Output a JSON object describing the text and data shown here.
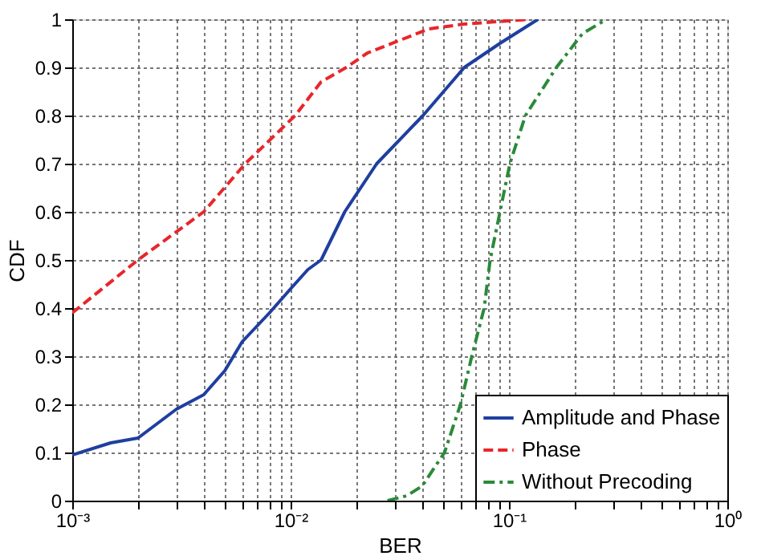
{
  "chart_data": {
    "type": "line",
    "xlabel": "BER",
    "ylabel": "CDF",
    "log": "x",
    "grid": true,
    "legend": "bottom right",
    "xlim": [
      0.001,
      1
    ],
    "ylim": [
      0,
      1
    ],
    "xticks": [
      {
        "value": 0.001,
        "label": "10⁻³"
      },
      {
        "value": 0.002,
        "label": null
      },
      {
        "value": 0.003,
        "label": null
      },
      {
        "value": 0.004,
        "label": null
      },
      {
        "value": 0.005,
        "label": null
      },
      {
        "value": 0.006,
        "label": null
      },
      {
        "value": 0.007,
        "label": null
      },
      {
        "value": 0.008,
        "label": null
      },
      {
        "value": 0.009,
        "label": null
      },
      {
        "value": 0.01,
        "label": "10⁻²"
      },
      {
        "value": 0.02,
        "label": null
      },
      {
        "value": 0.03,
        "label": null
      },
      {
        "value": 0.04,
        "label": null
      },
      {
        "value": 0.05,
        "label": null
      },
      {
        "value": 0.06,
        "label": null
      },
      {
        "value": 0.07,
        "label": null
      },
      {
        "value": 0.08,
        "label": null
      },
      {
        "value": 0.09,
        "label": null
      },
      {
        "value": 0.1,
        "label": "10⁻¹"
      },
      {
        "value": 0.2,
        "label": null
      },
      {
        "value": 0.3,
        "label": null
      },
      {
        "value": 0.4,
        "label": null
      },
      {
        "value": 0.5,
        "label": null
      },
      {
        "value": 0.6,
        "label": null
      },
      {
        "value": 0.7,
        "label": null
      },
      {
        "value": 0.8,
        "label": null
      },
      {
        "value": 0.9,
        "label": null
      },
      {
        "value": 1,
        "label": "10⁰"
      }
    ],
    "yticks": [
      0,
      0.1,
      0.2,
      0.3,
      0.4,
      0.5,
      0.6,
      0.7,
      0.8,
      0.9,
      1
    ],
    "series": [
      {
        "name": "Amplitude and Phase",
        "color": "#1f3f9f",
        "line_style": "solid",
        "x": [
          0.001,
          0.0015,
          0.002,
          0.003,
          0.004,
          0.005,
          0.006,
          0.008,
          0.01,
          0.012,
          0.0138,
          0.0177,
          0.0248,
          0.0404,
          0.0625,
          0.091,
          0.136
        ],
        "values": [
          0.095,
          0.12,
          0.13,
          0.19,
          0.22,
          0.27,
          0.33,
          0.39,
          0.44,
          0.48,
          0.5,
          0.6,
          0.7,
          0.8,
          0.9,
          0.95,
          1.0
        ]
      },
      {
        "name": "Phase",
        "color": "#e8262a",
        "line_style": "dashed",
        "x": [
          0.001,
          0.002,
          0.004,
          0.0062,
          0.0105,
          0.0138,
          0.018,
          0.0225,
          0.043,
          0.0625,
          0.125
        ],
        "values": [
          0.39,
          0.5,
          0.6,
          0.7,
          0.8,
          0.87,
          0.9,
          0.93,
          0.98,
          0.99,
          1.0
        ]
      },
      {
        "name": "Without Precoding",
        "color": "#2a8a3a",
        "line_style": "dashdot",
        "x": [
          0.0278,
          0.034,
          0.04,
          0.0507,
          0.06,
          0.0676,
          0.077,
          0.082,
          0.091,
          0.101,
          0.119,
          0.165,
          0.217,
          0.28
        ],
        "values": [
          0.0,
          0.01,
          0.03,
          0.1,
          0.2,
          0.3,
          0.4,
          0.5,
          0.6,
          0.7,
          0.8,
          0.9,
          0.97,
          1.0
        ]
      }
    ]
  }
}
